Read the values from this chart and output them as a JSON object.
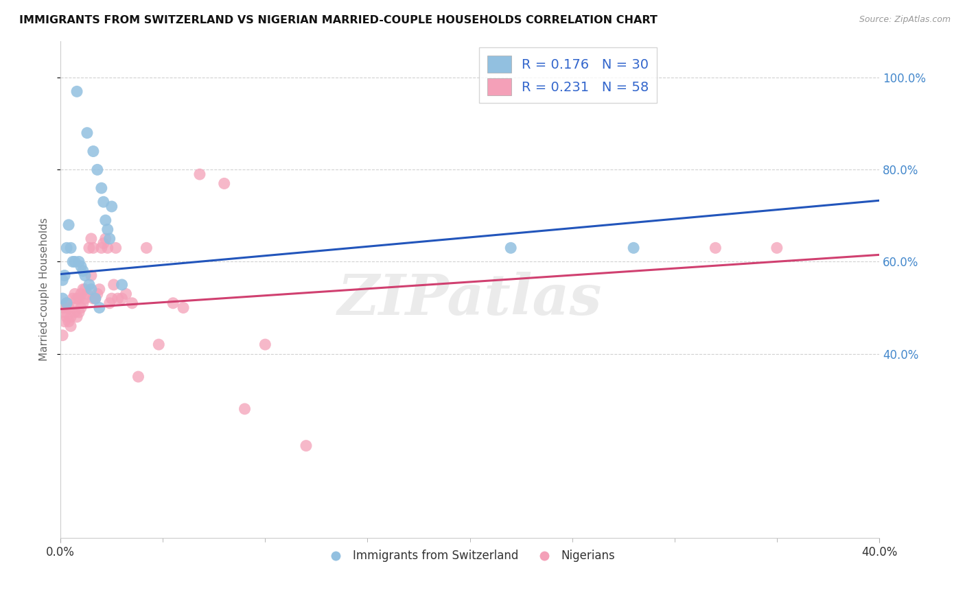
{
  "title": "IMMIGRANTS FROM SWITZERLAND VS NIGERIAN MARRIED-COUPLE HOUSEHOLDS CORRELATION CHART",
  "source": "Source: ZipAtlas.com",
  "ylabel": "Married-couple Households",
  "xlim": [
    0.0,
    0.4
  ],
  "ylim": [
    0.0,
    1.08
  ],
  "xtick_labels": [
    "0.0%",
    "40.0%"
  ],
  "yticks": [
    0.4,
    0.6,
    0.8,
    1.0
  ],
  "ytick_labels": [
    "40.0%",
    "60.0%",
    "80.0%",
    "100.0%"
  ],
  "series1_color": "#92c0e0",
  "series2_color": "#f4a0b8",
  "series1_line_color": "#2255bb",
  "series2_line_color": "#d04070",
  "watermark": "ZIPatlas",
  "background_color": "#ffffff",
  "grid_color": "#cccccc",
  "blue_intercept": 0.573,
  "blue_slope": 0.4,
  "pink_intercept": 0.497,
  "pink_slope": 0.295,
  "blue_x": [
    0.008,
    0.013,
    0.016,
    0.018,
    0.02,
    0.021,
    0.022,
    0.023,
    0.024,
    0.025,
    0.003,
    0.004,
    0.005,
    0.006,
    0.007,
    0.009,
    0.01,
    0.011,
    0.012,
    0.014,
    0.015,
    0.017,
    0.019,
    0.03,
    0.001,
    0.002,
    0.001,
    0.003,
    0.22,
    0.28
  ],
  "blue_y": [
    0.97,
    0.88,
    0.84,
    0.8,
    0.76,
    0.73,
    0.69,
    0.67,
    0.65,
    0.72,
    0.63,
    0.68,
    0.63,
    0.6,
    0.6,
    0.6,
    0.59,
    0.58,
    0.57,
    0.55,
    0.54,
    0.52,
    0.5,
    0.55,
    0.56,
    0.57,
    0.52,
    0.51,
    0.63,
    0.63
  ],
  "pink_x": [
    0.001,
    0.002,
    0.002,
    0.003,
    0.003,
    0.004,
    0.004,
    0.005,
    0.005,
    0.006,
    0.006,
    0.007,
    0.007,
    0.008,
    0.008,
    0.009,
    0.009,
    0.01,
    0.01,
    0.011,
    0.011,
    0.012,
    0.012,
    0.013,
    0.014,
    0.015,
    0.015,
    0.016,
    0.016,
    0.017,
    0.018,
    0.019,
    0.02,
    0.021,
    0.022,
    0.023,
    0.024,
    0.025,
    0.026,
    0.027,
    0.028,
    0.03,
    0.032,
    0.035,
    0.038,
    0.042,
    0.048,
    0.055,
    0.06,
    0.068,
    0.08,
    0.09,
    0.1,
    0.12,
    0.001,
    0.002,
    0.32,
    0.35
  ],
  "pink_y": [
    0.5,
    0.5,
    0.49,
    0.51,
    0.48,
    0.5,
    0.47,
    0.48,
    0.46,
    0.52,
    0.5,
    0.53,
    0.49,
    0.52,
    0.48,
    0.52,
    0.49,
    0.53,
    0.5,
    0.54,
    0.51,
    0.54,
    0.52,
    0.53,
    0.63,
    0.65,
    0.57,
    0.63,
    0.52,
    0.52,
    0.53,
    0.54,
    0.63,
    0.64,
    0.65,
    0.63,
    0.51,
    0.52,
    0.55,
    0.63,
    0.52,
    0.52,
    0.53,
    0.51,
    0.35,
    0.63,
    0.42,
    0.51,
    0.5,
    0.79,
    0.77,
    0.28,
    0.42,
    0.2,
    0.44,
    0.47,
    0.63,
    0.63
  ]
}
